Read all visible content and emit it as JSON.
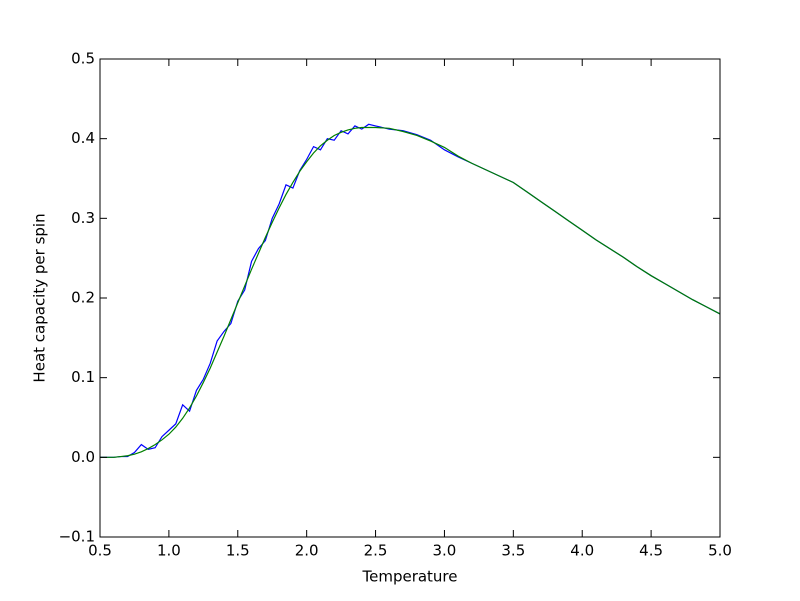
{
  "chart_data": {
    "type": "line",
    "xlabel": "Temperature",
    "ylabel": "Heat capacity per spin",
    "x": [
      0.5,
      0.55,
      0.6,
      0.65,
      0.7,
      0.75,
      0.8,
      0.85,
      0.9,
      0.95,
      1.0,
      1.05,
      1.1,
      1.15,
      1.2,
      1.25,
      1.3,
      1.35,
      1.4,
      1.45,
      1.5,
      1.55,
      1.6,
      1.65,
      1.7,
      1.75,
      1.8,
      1.85,
      1.9,
      1.95,
      2.0,
      2.05,
      2.1,
      2.15,
      2.2,
      2.25,
      2.3,
      2.35,
      2.4,
      2.45,
      2.5,
      2.6,
      2.7,
      2.8,
      2.9,
      3.0,
      3.1,
      3.2,
      3.3,
      3.4,
      3.5,
      3.6,
      3.7,
      3.8,
      3.9,
      4.0,
      4.1,
      4.2,
      4.3,
      4.4,
      4.5,
      4.6,
      4.7,
      4.8,
      4.9,
      5.0
    ],
    "series": [
      {
        "color": "#0000ff",
        "values": [
          0.0,
          0.0,
          0.0,
          0.001,
          0.001,
          0.006,
          0.016,
          0.01,
          0.012,
          0.026,
          0.034,
          0.042,
          0.066,
          0.058,
          0.084,
          0.098,
          0.118,
          0.146,
          0.158,
          0.168,
          0.196,
          0.21,
          0.246,
          0.262,
          0.272,
          0.3,
          0.318,
          0.342,
          0.338,
          0.36,
          0.374,
          0.39,
          0.386,
          0.4,
          0.398,
          0.41,
          0.406,
          0.416,
          0.412,
          0.418,
          0.416,
          0.412,
          0.41,
          0.405,
          0.398,
          0.386,
          0.377,
          0.369,
          0.361,
          0.353,
          0.345,
          0.333,
          0.321,
          0.309,
          0.297,
          0.285,
          0.273,
          0.262,
          0.251,
          0.239,
          0.228,
          0.218,
          0.208,
          0.198,
          0.189,
          0.18
        ]
      },
      {
        "color": "#008000",
        "values": [
          0.0,
          0.0,
          0.0,
          0.001,
          0.002,
          0.004,
          0.007,
          0.011,
          0.016,
          0.022,
          0.029,
          0.038,
          0.049,
          0.062,
          0.077,
          0.094,
          0.112,
          0.132,
          0.152,
          0.173,
          0.194,
          0.215,
          0.236,
          0.256,
          0.276,
          0.295,
          0.313,
          0.33,
          0.345,
          0.359,
          0.371,
          0.382,
          0.391,
          0.398,
          0.404,
          0.408,
          0.411,
          0.413,
          0.414,
          0.414,
          0.414,
          0.413,
          0.409,
          0.404,
          0.397,
          0.389,
          0.378,
          0.369,
          0.361,
          0.353,
          0.345,
          0.333,
          0.321,
          0.309,
          0.297,
          0.285,
          0.273,
          0.262,
          0.251,
          0.239,
          0.228,
          0.218,
          0.208,
          0.198,
          0.189,
          0.18
        ]
      }
    ],
    "xlim": [
      0.5,
      5.0
    ],
    "xticks": [
      0.5,
      {
        "value": 1,
        "label": "1.0"
      },
      1.5,
      {
        "value": 2,
        "label": "2.0"
      },
      2.5,
      {
        "value": 3,
        "label": "3.0"
      },
      3.5,
      {
        "value": 4,
        "label": "4.0"
      },
      4.5,
      {
        "value": 5,
        "label": "5.0"
      }
    ],
    "ylim": [
      -0.1,
      0.5
    ],
    "yticks": [
      {
        "value": -0.1,
        "label": "−0.1"
      },
      {
        "value": 0,
        "label": "0.0"
      },
      0.1,
      0.2,
      0.3,
      0.4,
      0.5
    ]
  }
}
